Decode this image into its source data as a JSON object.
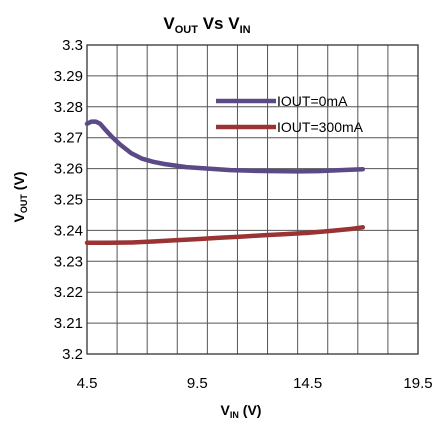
{
  "chart_data": {
    "type": "line",
    "title_main": "V",
    "title_sub1": "OUT",
    "title_mid": " Vs  V",
    "title_sub2": "IN",
    "xlabel_main": "V",
    "xlabel_sub": "IN",
    "xlabel_unit": " (V)",
    "ylabel_main": "V",
    "ylabel_sub": "OUT",
    "ylabel_unit": " (V)",
    "xlim": [
      4.5,
      19.5
    ],
    "ylim": [
      3.2,
      3.3
    ],
    "x_ticks": [
      "4.5",
      "9.5",
      "14.5",
      "19.5"
    ],
    "y_ticks": [
      "3.3",
      "3.29",
      "3.28",
      "3.27",
      "3.26",
      "3.25",
      "3.24",
      "3.23",
      "3.22",
      "3.21",
      "3.2"
    ],
    "grid": true,
    "legend_position": "top-right",
    "series": [
      {
        "name": "IOUT=0mA",
        "color": "#5B4A86",
        "x": [
          4.5,
          4.7,
          4.9,
          5.1,
          5.3,
          5.6,
          6.0,
          6.5,
          7.0,
          7.5,
          8.0,
          9.0,
          10.0,
          11.0,
          12.0,
          13.0,
          14.0,
          15.0,
          16.0,
          17.0
        ],
        "y": [
          3.2745,
          3.2752,
          3.2752,
          3.2745,
          3.2728,
          3.2705,
          3.2678,
          3.265,
          3.2632,
          3.2622,
          3.2615,
          3.2605,
          3.26,
          3.2595,
          3.2593,
          3.2592,
          3.2591,
          3.2592,
          3.2595,
          3.2598
        ]
      },
      {
        "name": "IOUT=300mA",
        "color": "#9A3434",
        "x": [
          4.5,
          5.5,
          6.5,
          7.5,
          8.5,
          9.5,
          10.5,
          11.5,
          12.5,
          13.5,
          14.5,
          15.5,
          16.5,
          17.0
        ],
        "y": [
          3.236,
          3.236,
          3.2361,
          3.2364,
          3.2368,
          3.2372,
          3.2376,
          3.238,
          3.2384,
          3.2388,
          3.2392,
          3.2398,
          3.2405,
          3.241
        ]
      }
    ]
  }
}
